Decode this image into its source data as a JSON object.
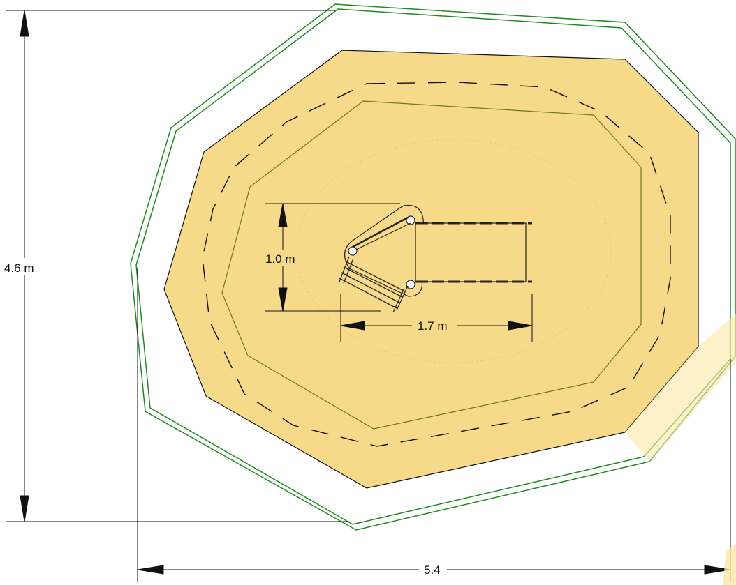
{
  "colors": {
    "safety_surface": "#f7d98a",
    "safety_surface_edge": "#111111",
    "inner_zone_line": "#6f7a10",
    "boundary_line": "#1f8a1f",
    "dimension_line": "#111111",
    "background": "#ffffff"
  },
  "dimensions": {
    "height_label": "4.6 m",
    "width_label": "5.4",
    "equipment_depth_label": "1.0 m",
    "equipment_length_label": "1.7 m"
  }
}
